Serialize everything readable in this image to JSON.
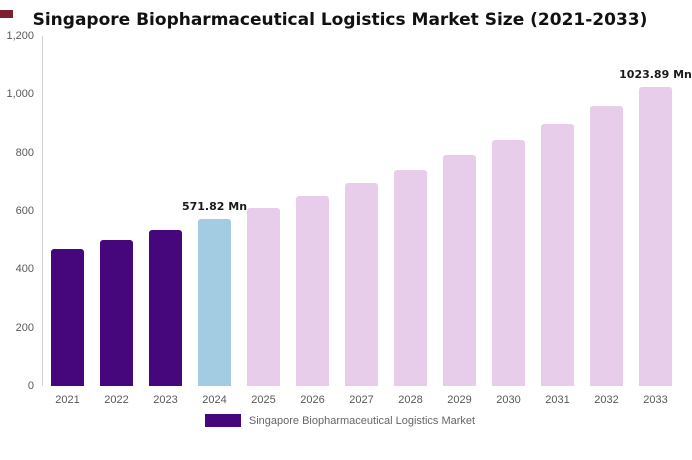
{
  "decorations": {
    "corner_color": "#7E1E2E"
  },
  "chart_data": {
    "type": "bar",
    "title": "Singapore Biopharmaceutical Logistics Market Size (2021-2033)",
    "categories": [
      "2021",
      "2022",
      "2023",
      "2024",
      "2025",
      "2026",
      "2027",
      "2028",
      "2029",
      "2030",
      "2031",
      "2032",
      "2033"
    ],
    "values": [
      470.7,
      502.3,
      535.9,
      571.82,
      610.1,
      650.9,
      694.4,
      740.9,
      790.4,
      843.3,
      899.7,
      959.8,
      1023.89
    ],
    "bar_colors": [
      "#45077B",
      "#45077B",
      "#45077B",
      "#A3CBE1",
      "#E8CDEA",
      "#E8CDEA",
      "#E8CDEA",
      "#E8CDEA",
      "#E8CDEA",
      "#E8CDEA",
      "#E8CDEA",
      "#E8CDEA",
      "#E8CDEA"
    ],
    "annotations": [
      {
        "index": 3,
        "text": "571.82 Mn"
      },
      {
        "index": 12,
        "text": "1023.89 Mn"
      }
    ],
    "ylim": [
      0,
      1200
    ],
    "yticks": [
      {
        "value": 0,
        "label": "0"
      },
      {
        "value": 200,
        "label": "200"
      },
      {
        "value": 400,
        "label": "400"
      },
      {
        "value": 600,
        "label": "600"
      },
      {
        "value": 800,
        "label": "800"
      },
      {
        "value": 1000,
        "label": "1,000"
      },
      {
        "value": 1200,
        "label": "1,200"
      }
    ],
    "grid": false,
    "legend": {
      "position": "bottom",
      "items": [
        {
          "label": "Singapore Biopharmaceutical Logistics Market",
          "color": "#45077B"
        }
      ]
    }
  }
}
